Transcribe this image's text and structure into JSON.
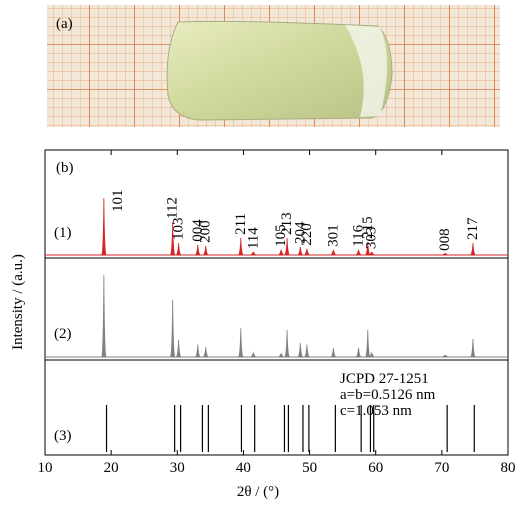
{
  "photo": {
    "label": "(a)"
  },
  "chart_data": {
    "type": "xrd",
    "panel_label": "(b)",
    "xlabel": "2θ / (°)",
    "ylabel": "Intensity / (a.u.)",
    "xlim": [
      10,
      80
    ],
    "xticks": [
      10,
      20,
      30,
      40,
      50,
      60,
      70,
      80
    ],
    "annotation": [
      "JCPD 27-1251",
      "a=b=0.5126 nm",
      "c=1.053 nm"
    ],
    "series": [
      {
        "name": "(1)",
        "type": "line",
        "color": "#d62728",
        "x": [
          18.9,
          29.3,
          30.2,
          33.1,
          34.3,
          39.6,
          41.5,
          45.7,
          46.6,
          48.6,
          49.6,
          53.6,
          57.4,
          58.8,
          59.4,
          70.5,
          74.7
        ],
        "values": [
          100,
          58,
          21,
          18,
          16,
          30,
          5,
          9,
          30,
          14,
          11,
          9,
          9,
          23,
          5,
          2,
          21
        ],
        "labels": [
          "101",
          "112",
          "103",
          "004",
          "200",
          "211",
          "114",
          "105",
          "213",
          "204",
          "220",
          "301",
          "116",
          "215",
          "303",
          "008",
          "217"
        ]
      },
      {
        "name": "(2)",
        "type": "line",
        "color": "#808080",
        "x": [
          18.9,
          29.3,
          30.2,
          33.1,
          34.3,
          39.6,
          41.5,
          45.7,
          46.6,
          48.6,
          49.6,
          53.6,
          57.4,
          58.8,
          59.4,
          70.5,
          74.7
        ],
        "values": [
          100,
          70,
          21,
          15,
          12,
          35,
          5,
          4,
          33,
          17,
          15,
          11,
          11,
          33,
          5,
          2,
          22
        ]
      },
      {
        "name": "(3)",
        "type": "stem",
        "color": "#000000",
        "x": [
          19.3,
          29.6,
          30.5,
          33.8,
          34.7,
          39.7,
          41.7,
          46.2,
          46.8,
          49.0,
          49.9,
          53.9,
          57.8,
          59.2,
          59.7,
          70.8,
          74.9
        ],
        "values": [
          100,
          100,
          100,
          100,
          100,
          100,
          100,
          100,
          100,
          100,
          100,
          100,
          100,
          100,
          100,
          100,
          100
        ]
      }
    ]
  }
}
